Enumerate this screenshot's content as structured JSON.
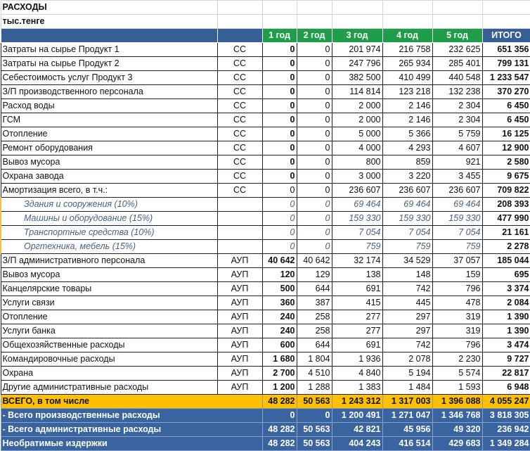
{
  "title": "РАСХОДЫ",
  "units": "тыс.тенге",
  "columns": [
    "1 год",
    "2 год",
    "3 год",
    "4 год",
    "5 год",
    "ИТОГО"
  ],
  "colors": {
    "header_blue": "#375f97",
    "header_green": "#1e9e48",
    "grand_total": "#ffc000",
    "summary_blue": "#3a64a0"
  },
  "rows": [
    {
      "label": "Затраты на сырье Продукт 1",
      "code": "СС",
      "values": [
        "0",
        "0",
        "201 974",
        "216 758",
        "232 625",
        "651 356"
      ]
    },
    {
      "label": "Затраты на сырье Продукт 2",
      "code": "СС",
      "values": [
        "0",
        "0",
        "247 796",
        "265 934",
        "285 401",
        "799 131"
      ]
    },
    {
      "label": "Себестоимость услуг Продукт 3",
      "code": "СС",
      "values": [
        "0",
        "0",
        "382 500",
        "410 499",
        "440 548",
        "1 233 547"
      ]
    },
    {
      "label": "З/П производственного персонала",
      "code": "СС",
      "values": [
        "0",
        "0",
        "114 814",
        "123 218",
        "132 238",
        "370 270"
      ]
    },
    {
      "label": "Расход воды",
      "code": "СС",
      "values": [
        "0",
        "0",
        "2 000",
        "2 146",
        "2 304",
        "6 450"
      ]
    },
    {
      "label": "ГСМ",
      "code": "СС",
      "values": [
        "0",
        "0",
        "2 000",
        "2 146",
        "2 304",
        "6 450"
      ]
    },
    {
      "label": "Отопление",
      "code": "СС",
      "values": [
        "0",
        "0",
        "5 000",
        "5 366",
        "5 759",
        "16 125"
      ]
    },
    {
      "label": "Ремонт оборудования",
      "code": "СС",
      "values": [
        "0",
        "0",
        "4 000",
        "4 293",
        "4 607",
        "12 900"
      ]
    },
    {
      "label": "Вывоз мусора",
      "code": "СС",
      "values": [
        "0",
        "0",
        "800",
        "859",
        "921",
        "2 580"
      ]
    },
    {
      "label": "Охрана завода",
      "code": "СС",
      "values": [
        "0",
        "0",
        "3 000",
        "3 220",
        "3 455",
        "9 675"
      ]
    },
    {
      "label": "Амортизация всего, в т.ч.:",
      "code": "СС",
      "values": [
        "0",
        "0",
        "236 607",
        "236 607",
        "236 607",
        "709 822"
      ],
      "first_plain": true
    },
    {
      "label": "Здания и сооружения (10%)",
      "code": "",
      "sub": true,
      "values": [
        "0",
        "0",
        "69 464",
        "69 464",
        "69 464",
        "208 393"
      ]
    },
    {
      "label": "Машины и оборудование (15%)",
      "code": "",
      "sub": true,
      "values": [
        "0",
        "0",
        "159 330",
        "159 330",
        "159 330",
        "477 990"
      ]
    },
    {
      "label": "Транспортные средства (10%)",
      "code": "",
      "sub": true,
      "values": [
        "0",
        "0",
        "7 054",
        "7 054",
        "7 054",
        "21 161"
      ]
    },
    {
      "label": "Оргтехника, мебель (15%)",
      "code": "",
      "sub": true,
      "values": [
        "0",
        "0",
        "759",
        "759",
        "759",
        "2 278"
      ]
    },
    {
      "label": "З/П административного персонала",
      "code": "АУП",
      "values": [
        "40 642",
        "40 642",
        "32 174",
        "34 529",
        "37 057",
        "185 044"
      ]
    },
    {
      "label": "Вывоз мусора",
      "code": "АУП",
      "values": [
        "120",
        "129",
        "138",
        "148",
        "159",
        "695"
      ]
    },
    {
      "label": "Канцелярские товары",
      "code": "АУП",
      "values": [
        "500",
        "644",
        "691",
        "742",
        "796",
        "3 374"
      ]
    },
    {
      "label": "Услуги связи",
      "code": "АУП",
      "values": [
        "360",
        "387",
        "415",
        "445",
        "478",
        "2 084"
      ]
    },
    {
      "label": "Отопление",
      "code": "АУП",
      "values": [
        "240",
        "258",
        "277",
        "297",
        "319",
        "1 390"
      ]
    },
    {
      "label": "Услуги банка",
      "code": "АУП",
      "values": [
        "240",
        "258",
        "277",
        "297",
        "319",
        "1 390"
      ]
    },
    {
      "label": "Общехозяйственные расходы",
      "code": "АУП",
      "values": [
        "600",
        "644",
        "691",
        "742",
        "796",
        "3 474"
      ]
    },
    {
      "label": "Командировочные расходы",
      "code": "АУП",
      "values": [
        "1 680",
        "1 804",
        "1 936",
        "2 078",
        "2 230",
        "9 727"
      ]
    },
    {
      "label": "Охрана",
      "code": "АУП",
      "values": [
        "2 700",
        "4 510",
        "4 840",
        "5 194",
        "5 574",
        "22 817"
      ]
    },
    {
      "label": "Другие административные расходы",
      "code": "АУП",
      "values": [
        "1 200",
        "1 288",
        "1 383",
        "1 484",
        "1 593",
        "6 948"
      ]
    }
  ],
  "grand_total": {
    "label": "ВСЕГО, в том числе",
    "values": [
      "48 282",
      "50 563",
      "1 243 312",
      "1 317 003",
      "1 396 088",
      "4 055 247"
    ]
  },
  "summary": [
    {
      "label": " - Всего производственные расходы",
      "values": [
        "0",
        "0",
        "1 200 491",
        "1 271 047",
        "1 346 768",
        "3 818 305"
      ]
    },
    {
      "label": " - Всего административные расходы",
      "values": [
        "48 282",
        "50 563",
        "42 821",
        "45 956",
        "49 320",
        "236 942"
      ]
    },
    {
      "label": "Необратимые издержки",
      "values": [
        "48 282",
        "50 563",
        "404 243",
        "416 514",
        "429 683",
        "1 349 284"
      ]
    }
  ]
}
